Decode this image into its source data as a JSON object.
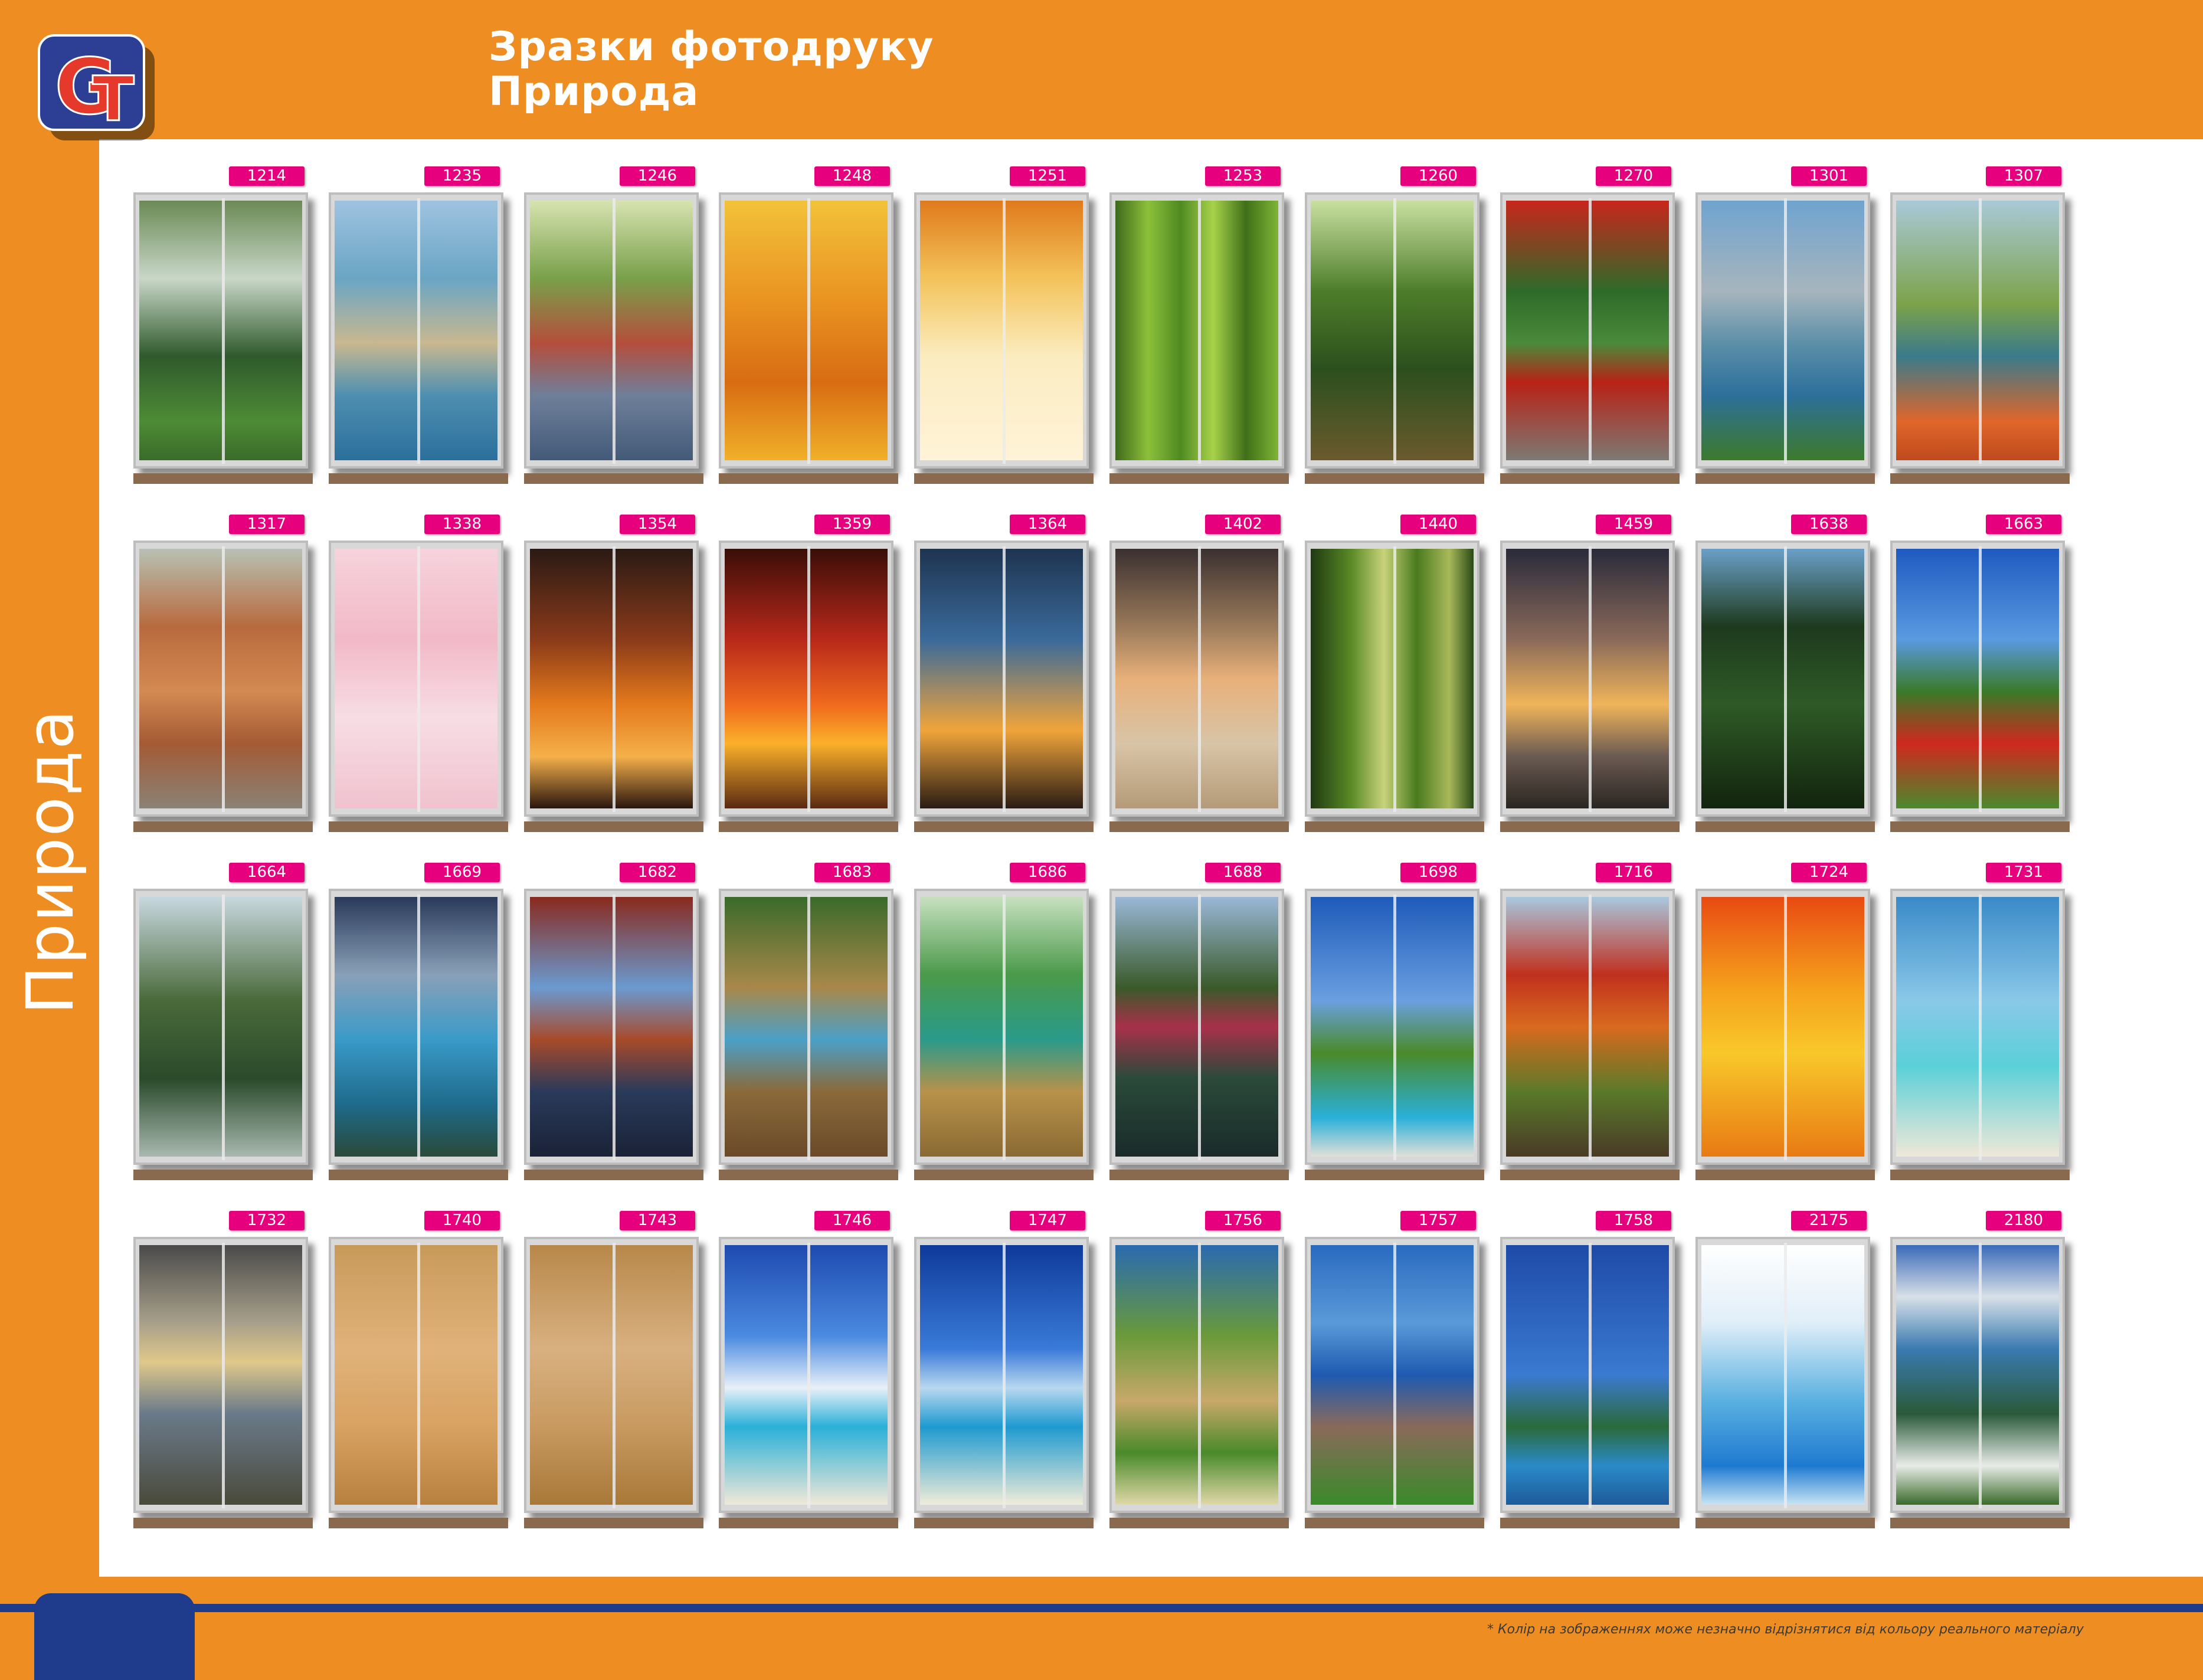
{
  "header": {
    "title_line1": "Зразки фотодруку",
    "title_line2": "Природа",
    "logo_letters": "GT"
  },
  "sidebar": {
    "label": "Природа"
  },
  "footer": {
    "note": "* Колір на зображеннях може незначно відрізнятися від кольору реального матеріалу"
  },
  "colors": {
    "orange": "#EE8E22",
    "blue": "#1E3B8C",
    "tag_magenta": "#E6007E",
    "logo_red": "#E53A2B"
  },
  "samples": [
    {
      "code": "1214",
      "scene": "waterfall-forest"
    },
    {
      "code": "1235",
      "scene": "hammock-beach"
    },
    {
      "code": "1246",
      "scene": "park-bridge-path"
    },
    {
      "code": "1248",
      "scene": "autumn-leaves"
    },
    {
      "code": "1251",
      "scene": "autumn-leaves-light"
    },
    {
      "code": "1253",
      "scene": "bamboo-forest"
    },
    {
      "code": "1260",
      "scene": "green-forest"
    },
    {
      "code": "1270",
      "scene": "red-bridge-garden"
    },
    {
      "code": "1301",
      "scene": "sea-cliffs"
    },
    {
      "code": "1307",
      "scene": "coastal-garden"
    },
    {
      "code": "1317",
      "scene": "canyon-pine"
    },
    {
      "code": "1338",
      "scene": "sakura-pink"
    },
    {
      "code": "1354",
      "scene": "palm-sunset"
    },
    {
      "code": "1359",
      "scene": "palm-sunset-red"
    },
    {
      "code": "1364",
      "scene": "palm-silhouettes"
    },
    {
      "code": "1402",
      "scene": "shell-pearl"
    },
    {
      "code": "1440",
      "scene": "bamboo-closeup"
    },
    {
      "code": "1459",
      "scene": "tree-sunset-sea"
    },
    {
      "code": "1638",
      "scene": "jungle-leaves"
    },
    {
      "code": "1663",
      "scene": "poppy-field"
    },
    {
      "code": "1664",
      "scene": "pine-branches"
    },
    {
      "code": "1669",
      "scene": "mountain-lake"
    },
    {
      "code": "1682",
      "scene": "autumn-lake"
    },
    {
      "code": "1683",
      "scene": "wooden-walkway"
    },
    {
      "code": "1686",
      "scene": "lagoon-walkway"
    },
    {
      "code": "1688",
      "scene": "japanese-garden"
    },
    {
      "code": "1698",
      "scene": "palm-pool"
    },
    {
      "code": "1716",
      "scene": "autumn-park"
    },
    {
      "code": "1724",
      "scene": "yellow-leaf-drops"
    },
    {
      "code": "1731",
      "scene": "tropical-beach"
    },
    {
      "code": "1732",
      "scene": "stormy-sea"
    },
    {
      "code": "1740",
      "scene": "sand-shells"
    },
    {
      "code": "1743",
      "scene": "shells-starfish"
    },
    {
      "code": "1746",
      "scene": "blue-sky-sea"
    },
    {
      "code": "1747",
      "scene": "sun-sky-sea"
    },
    {
      "code": "1756",
      "scene": "tropical-rocks"
    },
    {
      "code": "1757",
      "scene": "sea-coast-rocks"
    },
    {
      "code": "1758",
      "scene": "blue-sea-island"
    },
    {
      "code": "2175",
      "scene": "water-drop-flower"
    },
    {
      "code": "2180",
      "scene": "mountain-flowers"
    }
  ]
}
